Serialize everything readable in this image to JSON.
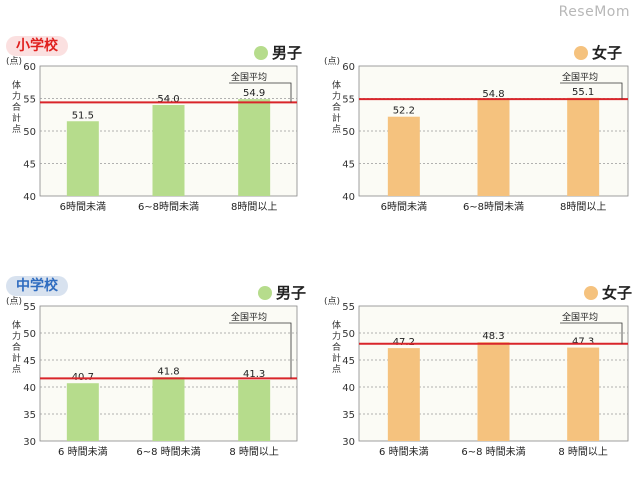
{
  "watermark": "ReseMom",
  "sections": [
    {
      "label": "小学校"
    },
    {
      "label": "中学校"
    }
  ],
  "colors": {
    "boys": "#b6dc8c",
    "girls": "#f5c27e",
    "average_line": "#d9252a",
    "plot_bg": "#fbfbf5"
  },
  "chart_data": [
    {
      "type": "bar",
      "legend": "男子",
      "unit_label": "(点)",
      "ylabel": "体力合計点",
      "average_label": "全国平均",
      "categories": [
        "6時間未満",
        "6~8時間未満",
        "8時間以上"
      ],
      "values": [
        51.5,
        54.0,
        54.9
      ],
      "value_labels": [
        "51.5",
        "54.0",
        "54.9"
      ],
      "average": 54.4,
      "ylim": [
        40,
        60
      ],
      "yticks": [
        40,
        45,
        50,
        55,
        60
      ],
      "series_color": "boys"
    },
    {
      "type": "bar",
      "legend": "女子",
      "unit_label": "(点)",
      "ylabel": "体力合計点",
      "average_label": "全国平均",
      "categories": [
        "6時間未満",
        "6~8時間未満",
        "8時間以上"
      ],
      "values": [
        52.2,
        54.8,
        55.1
      ],
      "value_labels": [
        "52.2",
        "54.8",
        "55.1"
      ],
      "average": 54.9,
      "ylim": [
        40,
        60
      ],
      "yticks": [
        40,
        45,
        50,
        55,
        60
      ],
      "series_color": "girls"
    },
    {
      "type": "bar",
      "legend": "男子",
      "unit_label": "(点)",
      "ylabel": "体力合計点",
      "average_label": "全国平均",
      "categories": [
        "6 時間未満",
        "6~8 時間未満",
        "8 時間以上"
      ],
      "values": [
        40.7,
        41.8,
        41.3
      ],
      "value_labels": [
        "40.7",
        "41.8",
        "41.3"
      ],
      "average": 41.6,
      "ylim": [
        30,
        55
      ],
      "yticks": [
        30,
        35,
        40,
        45,
        50,
        55
      ],
      "series_color": "boys"
    },
    {
      "type": "bar",
      "legend": "女子",
      "unit_label": "(点)",
      "ylabel": "体力合計点",
      "average_label": "全国平均",
      "categories": [
        "6 時間未満",
        "6~8 時間未満",
        "8 時間以上"
      ],
      "values": [
        47.2,
        48.3,
        47.3
      ],
      "value_labels": [
        "47.2",
        "48.3",
        "47.3"
      ],
      "average": 48.0,
      "ylim": [
        30,
        55
      ],
      "yticks": [
        30,
        35,
        40,
        45,
        50,
        55
      ],
      "series_color": "girls"
    }
  ]
}
